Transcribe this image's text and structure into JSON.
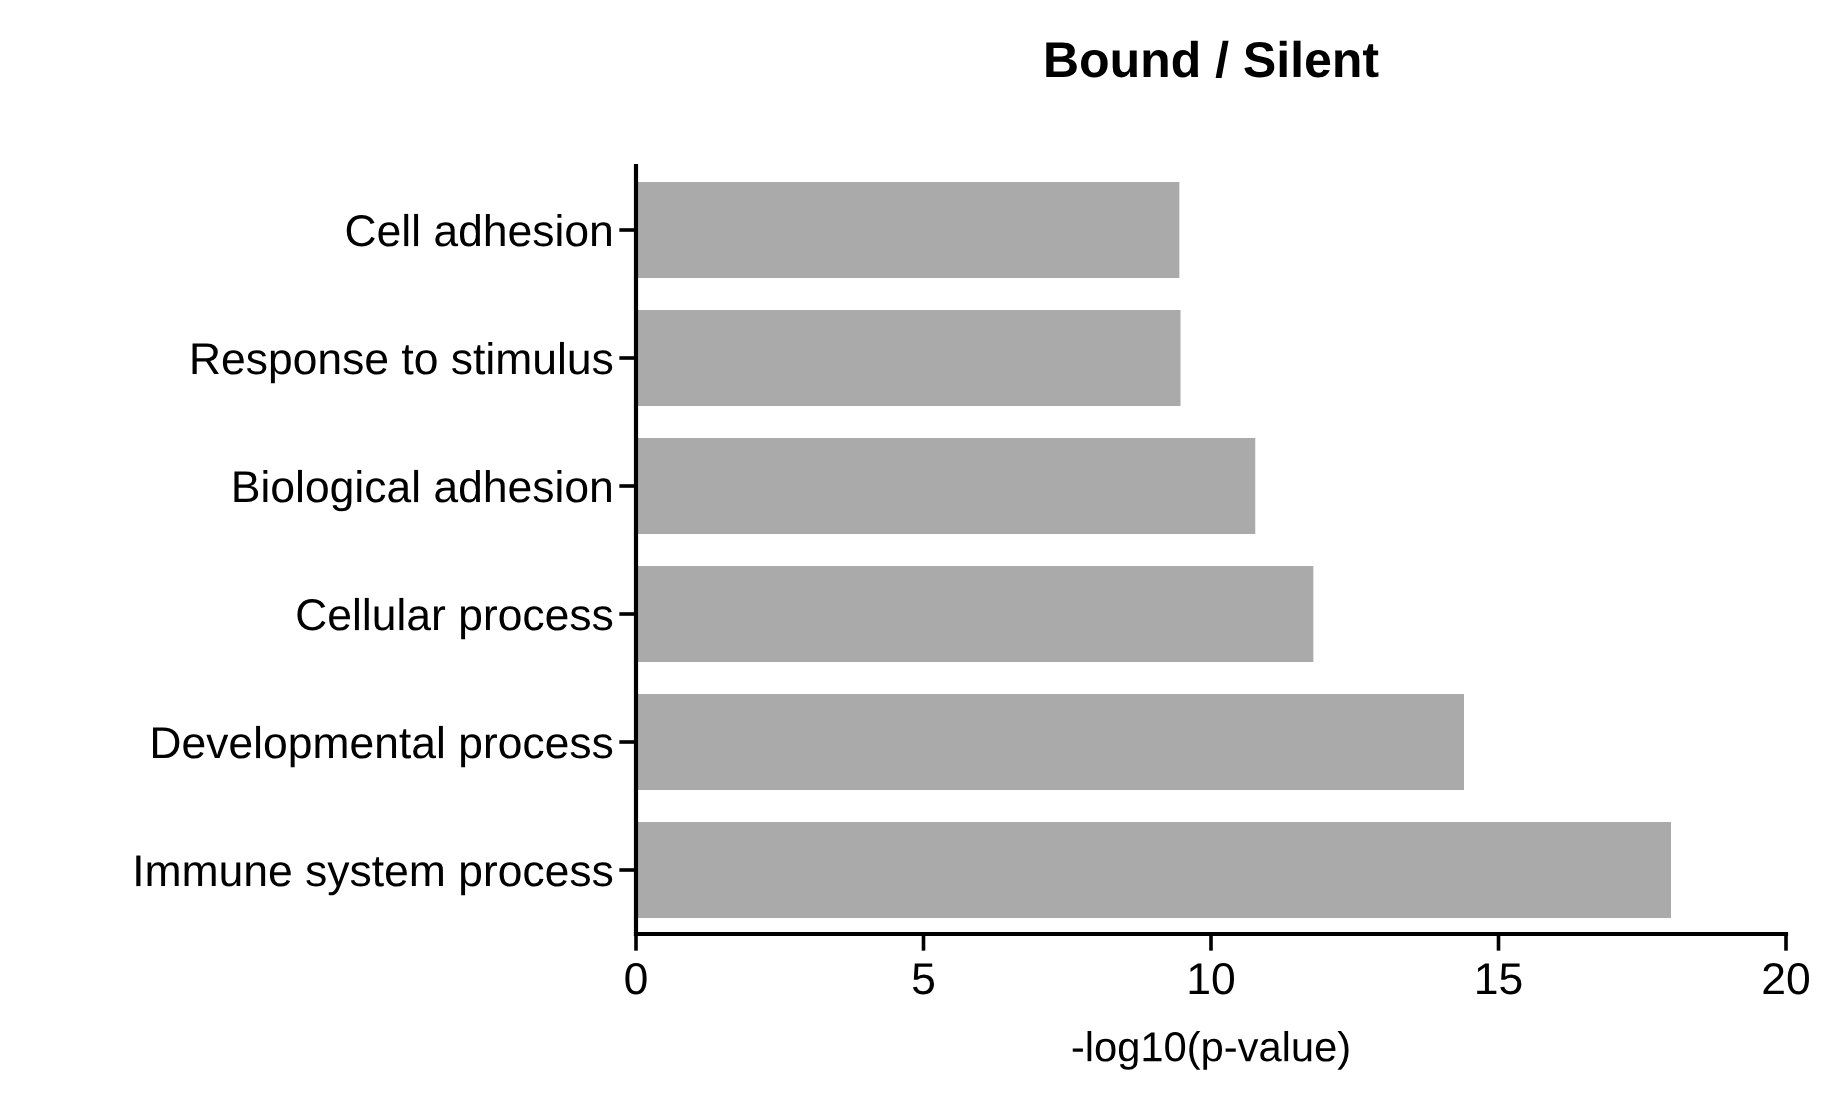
{
  "chart_data": {
    "type": "bar",
    "orientation": "horizontal",
    "title": "Bound / Silent",
    "xlabel": "-log10(p-value)",
    "categories": [
      "Cell adhesion",
      "Response to stimulus",
      "Biological adhesion",
      "Cellular process",
      "Developmental process",
      "Immune system process"
    ],
    "values": [
      9.45,
      9.47,
      10.77,
      11.78,
      14.4,
      18.0
    ],
    "color": "#aaaaaa",
    "xlim": [
      0,
      20
    ],
    "xticks": [
      0,
      5,
      10,
      15,
      20
    ],
    "grid": false,
    "legend": false
  }
}
